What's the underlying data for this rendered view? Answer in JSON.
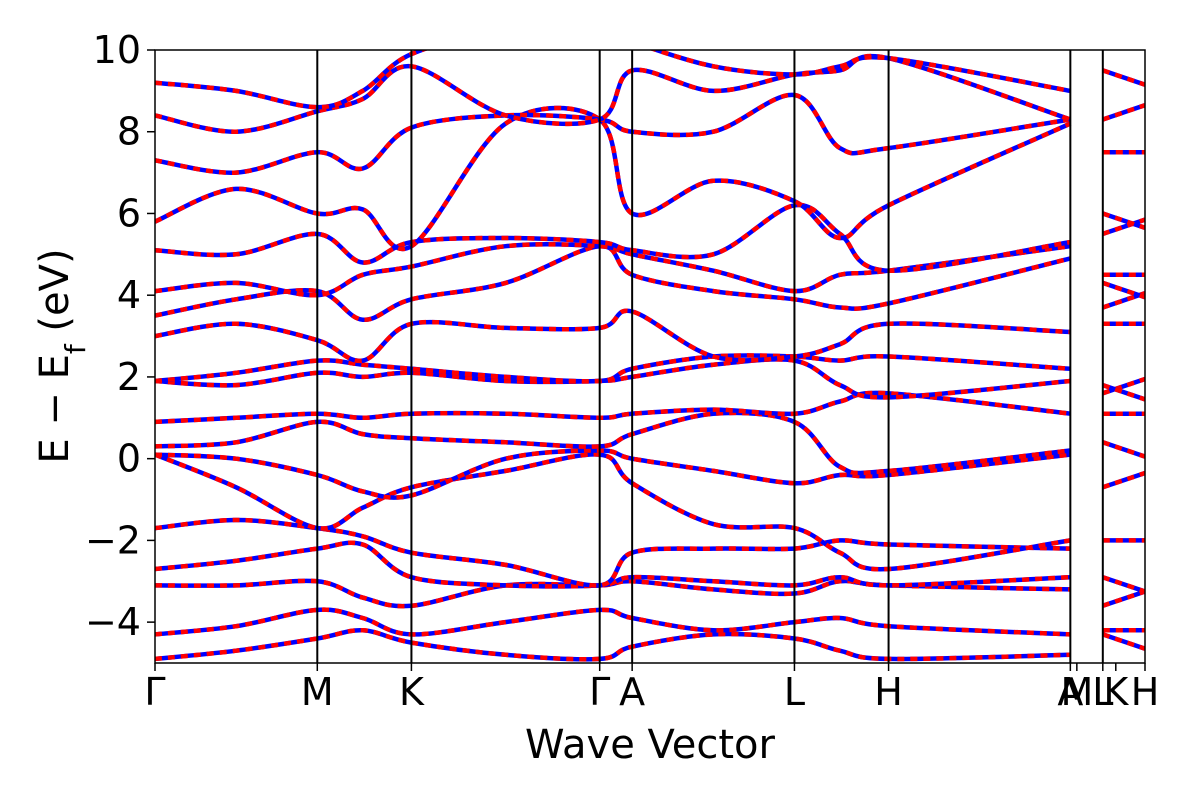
{
  "chart_data": {
    "type": "line",
    "title": "",
    "xlabel": "Wave Vector",
    "ylabel": "E − E",
    "ylabel_sub": "f",
    "ylabel_unit": " (eV)",
    "ylim": [
      -5,
      10
    ],
    "yticks": [
      {
        "value": -4,
        "label": "−4"
      },
      {
        "value": -2,
        "label": "−2"
      },
      {
        "value": 0,
        "label": "0"
      },
      {
        "value": 2,
        "label": "2"
      },
      {
        "value": 4,
        "label": "4"
      },
      {
        "value": 6,
        "label": "6"
      },
      {
        "value": 8,
        "label": "8"
      },
      {
        "value": 10,
        "label": "10"
      }
    ],
    "xlim": [
      0,
      30.5
    ],
    "kpoints": [
      {
        "label": "Γ",
        "x": 0
      },
      {
        "label": "M",
        "x": 5
      },
      {
        "label": "K",
        "x": 7.9
      },
      {
        "label": "Γ",
        "x": 13.7
      },
      {
        "label": "A",
        "x": 14.7
      },
      {
        "label": "L",
        "x": 19.7
      },
      {
        "label": "H",
        "x": 22.6
      },
      {
        "label": "A",
        "x": 28.2
      },
      {
        "label": "M",
        "x": 28.4
      },
      {
        "label": "L",
        "x": 29.2
      },
      {
        "label": "K",
        "x": 29.6
      },
      {
        "label": "H",
        "x": 30.5
      }
    ],
    "kpoint_lines": [
      5,
      7.9,
      13.7,
      14.7,
      19.7,
      22.6,
      28.2,
      29.2
    ],
    "colors": {
      "red_series": "#ff0000",
      "blue_series": "#0000ff",
      "axis": "#000000"
    },
    "grid": false,
    "legend": "none",
    "bands": [
      {
        "y": [
          -4.9,
          -4.7,
          -4.4,
          -4.2,
          -4.5,
          -4.8,
          -4.9,
          -4.6,
          -4.3,
          -4.4,
          -4.7,
          -4.9,
          -4.8
        ]
      },
      {
        "y": [
          -4.3,
          -4.1,
          -3.7,
          -3.9,
          -4.3,
          -4.0,
          -3.7,
          -3.9,
          -4.2,
          -4.0,
          -3.9,
          -4.1,
          -4.3
        ]
      },
      {
        "y": [
          -3.1,
          -3.1,
          -3.0,
          -3.4,
          -3.6,
          -3.1,
          -3.1,
          -3.0,
          -3.2,
          -3.3,
          -3.0,
          -3.1,
          -3.2
        ]
      },
      {
        "y": [
          -2.7,
          -2.5,
          -2.2,
          -2.1,
          -2.9,
          -3.1,
          -3.1,
          -2.9,
          -3.0,
          -3.1,
          -2.9,
          -3.1,
          -2.9
        ]
      },
      {
        "y": [
          -1.7,
          -1.5,
          -1.7,
          -1.9,
          -2.3,
          -2.6,
          -3.1,
          -2.3,
          -2.2,
          -2.2,
          -2.0,
          -2.1,
          -2.2
        ]
      },
      {
        "y": [
          0.1,
          -0.7,
          -1.7,
          -1.2,
          -0.7,
          -0.3,
          0.1,
          -0.6,
          -1.6,
          -1.7,
          -2.3,
          -2.7,
          -2.0
        ]
      },
      {
        "y": [
          0.1,
          0.0,
          -0.4,
          -0.8,
          -0.9,
          0.0,
          0.2,
          0.0,
          -0.3,
          -0.6,
          -0.4,
          -0.4,
          0.1
        ]
      },
      {
        "y": [
          0.3,
          0.4,
          0.9,
          0.6,
          0.5,
          0.4,
          0.3,
          0.6,
          1.1,
          0.9,
          -0.2,
          -0.3,
          0.2
        ]
      },
      {
        "y": [
          0.9,
          1.0,
          1.1,
          1.0,
          1.1,
          1.1,
          1.0,
          1.1,
          1.2,
          1.1,
          1.4,
          1.6,
          1.1
        ]
      },
      {
        "y": [
          1.9,
          1.8,
          2.1,
          2.0,
          2.1,
          1.9,
          1.9,
          2.0,
          2.3,
          2.4,
          1.8,
          1.5,
          1.9
        ]
      },
      {
        "y": [
          1.9,
          2.1,
          2.4,
          2.3,
          2.2,
          2.0,
          1.9,
          2.2,
          2.5,
          2.5,
          2.4,
          2.5,
          2.2
        ]
      },
      {
        "y": [
          3.0,
          3.3,
          2.9,
          2.4,
          3.3,
          3.2,
          3.2,
          3.6,
          2.5,
          2.5,
          2.8,
          3.3,
          3.1
        ]
      },
      {
        "y": [
          3.5,
          3.9,
          4.1,
          3.4,
          3.9,
          4.3,
          5.2,
          4.5,
          4.1,
          3.9,
          3.7,
          3.8,
          4.9
        ]
      },
      {
        "y": [
          4.1,
          4.3,
          4.0,
          4.5,
          4.7,
          5.2,
          5.2,
          5.0,
          4.6,
          4.1,
          4.5,
          4.6,
          5.2
        ]
      },
      {
        "y": [
          5.1,
          5.0,
          5.5,
          4.8,
          5.3,
          5.4,
          5.3,
          5.1,
          5.0,
          6.2,
          5.5,
          4.6,
          5.3
        ]
      },
      {
        "y": [
          5.8,
          6.6,
          6.0,
          6.1,
          5.2,
          8.2,
          8.3,
          6.0,
          6.8,
          6.3,
          5.4,
          6.2,
          8.2
        ]
      },
      {
        "y": [
          7.3,
          7.0,
          7.5,
          7.1,
          8.1,
          8.4,
          8.3,
          8.0,
          8.0,
          8.9,
          7.6,
          7.6,
          8.3
        ]
      },
      {
        "y": [
          8.4,
          8.0,
          8.5,
          8.8,
          9.6,
          8.4,
          8.3,
          9.5,
          9.0,
          9.4,
          9.5,
          9.8,
          8.3
        ]
      },
      {
        "y": [
          9.2,
          9.0,
          8.6,
          9.0,
          9.9,
          10.5,
          10.5,
          10.2,
          9.6,
          9.4,
          9.6,
          9.8,
          9.0
        ]
      }
    ],
    "band_x": [
      0,
      2.5,
      5,
      6.4,
      7.9,
      10.8,
      13.7,
      14.7,
      17.2,
      19.7,
      21.1,
      22.6,
      28.2
    ],
    "tail_bands_right": [
      -4.3,
      -4.2,
      -3.6,
      -2.9,
      -2.0,
      -0.7,
      0.4,
      1.1,
      1.6,
      1.8,
      3.3,
      3.7,
      4.3,
      4.5,
      5.5,
      6.0,
      7.5,
      8.3,
      9.5
    ]
  }
}
